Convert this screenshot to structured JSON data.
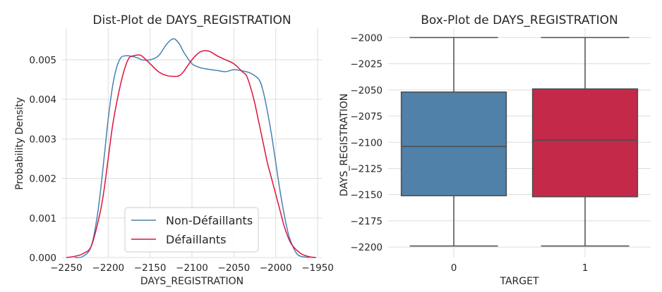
{
  "chart_data": [
    {
      "type": "line",
      "title": "Dist-Plot de DAYS_REGISTRATION",
      "xlabel": "DAYS_REGISTRATION",
      "ylabel": "Probability Density",
      "xlim": [
        -2255,
        -1945
      ],
      "ylim": [
        0,
        0.0058
      ],
      "xticks": [
        -2250,
        -2200,
        -2150,
        -2100,
        -2050,
        -2000,
        -1950
      ],
      "yticks": [
        0.0,
        0.001,
        0.002,
        0.003,
        0.004,
        0.005
      ],
      "grid": true,
      "legend_position": "bottom-center",
      "series": [
        {
          "name": "Non-Défaillants",
          "color": "#4682b4",
          "x": [
            -2240,
            -2230,
            -2220,
            -2212,
            -2205,
            -2200,
            -2195,
            -2190,
            -2185,
            -2180,
            -2175,
            -2165,
            -2160,
            -2150,
            -2140,
            -2130,
            -2122,
            -2115,
            -2110,
            -2100,
            -2090,
            -2080,
            -2070,
            -2060,
            -2050,
            -2040,
            -2030,
            -2020,
            -2015,
            -2010,
            -2005,
            -2000,
            -1995,
            -1990,
            -1985,
            -1980,
            -1975,
            -1970,
            -1960
          ],
          "y": [
            0.0,
            3e-05,
            0.0003,
            0.0012,
            0.0025,
            0.0035,
            0.0043,
            0.0048,
            0.00505,
            0.0051,
            0.0051,
            0.00505,
            0.005,
            0.005,
            0.0051,
            0.0054,
            0.00553,
            0.0054,
            0.0052,
            0.0049,
            0.0048,
            0.00476,
            0.00473,
            0.0047,
            0.00475,
            0.00472,
            0.00466,
            0.0045,
            0.0042,
            0.0037,
            0.0031,
            0.0024,
            0.0017,
            0.0011,
            0.0006,
            0.0003,
            0.0001,
            3e-05,
            0.0
          ]
        },
        {
          "name": "Défaillants",
          "color": "#dc143c",
          "x": [
            -2250,
            -2240,
            -2230,
            -2220,
            -2210,
            -2205,
            -2200,
            -2195,
            -2190,
            -2185,
            -2180,
            -2175,
            -2170,
            -2165,
            -2160,
            -2150,
            -2140,
            -2130,
            -2120,
            -2115,
            -2110,
            -2100,
            -2090,
            -2080,
            -2070,
            -2060,
            -2050,
            -2040,
            -2035,
            -2030,
            -2025,
            -2020,
            -2015,
            -2010,
            -2005,
            -2000,
            -1995,
            -1990,
            -1985,
            -1980,
            -1970,
            -1960,
            -1952
          ],
          "y": [
            0.0,
            3e-05,
            0.0001,
            0.0003,
            0.0011,
            0.0017,
            0.0025,
            0.0033,
            0.0039,
            0.0044,
            0.0048,
            0.00505,
            0.0051,
            0.00512,
            0.0051,
            0.0049,
            0.0047,
            0.0046,
            0.00458,
            0.0046,
            0.0047,
            0.005,
            0.0052,
            0.00522,
            0.0051,
            0.005,
            0.0049,
            0.0047,
            0.0046,
            0.0043,
            0.0039,
            0.0034,
            0.0029,
            0.0024,
            0.002,
            0.0016,
            0.0012,
            0.0008,
            0.0005,
            0.0003,
            0.0001,
            2e-05,
            0.0
          ]
        }
      ]
    },
    {
      "type": "box",
      "title": "Box-Plot de DAYS_REGISTRATION",
      "xlabel": "TARGET",
      "ylabel": "DAYS_REGISTRATION",
      "categories": [
        "0",
        "1"
      ],
      "ylim": [
        -2210,
        -1991
      ],
      "yticks": [
        -2000,
        -2025,
        -2050,
        -2075,
        -2100,
        -2125,
        -2150,
        -2175,
        -2200
      ],
      "grid": true,
      "boxes": [
        {
          "name": "0",
          "color": "#4f81a9",
          "whisker_low": -2199,
          "q1": -2151,
          "median": -2104,
          "q3": -2052,
          "whisker_high": -2000
        },
        {
          "name": "1",
          "color": "#c4294a",
          "whisker_low": -2199,
          "q1": -2152,
          "median": -2098,
          "q3": -2049,
          "whisker_high": -2000
        }
      ]
    }
  ]
}
